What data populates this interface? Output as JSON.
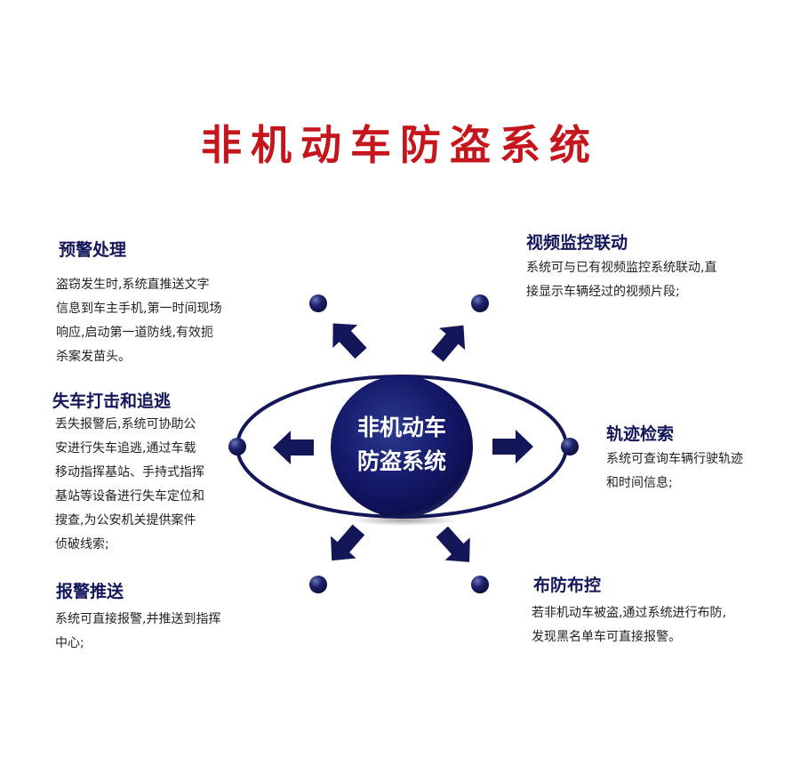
{
  "title": "非机动车防盗系统",
  "center": {
    "line1": "非机动车",
    "line2": "防盗系统"
  },
  "colors": {
    "title": "#c4161c",
    "navy": "#13175a",
    "text": "#222222"
  },
  "nodes": {
    "warning": {
      "heading": "预警处理",
      "lines": [
        "盗窃发生时,系统直推送文字",
        "信息到车主手机,第一时间现场",
        "响应,启动第一道防线,有效扼",
        "杀案发苗头。"
      ]
    },
    "pursuit": {
      "heading": "失车打击和追逃",
      "lines": [
        "丢失报警后,系统可协助公",
        "安进行失车追逃,通过车载",
        "移动指挥基站、手持式指挥",
        "基站等设备进行失车定位和",
        "搜查,为公安机关提供案件",
        "侦破线索;"
      ]
    },
    "alarm": {
      "heading": "报警推送",
      "lines": [
        "系统可直接报警,并推送到指挥",
        "中心;"
      ]
    },
    "video": {
      "heading": "视频监控联动",
      "lines": [
        "系统可与已有视频监控系统联动,直",
        "接显示车辆经过的视频片段;"
      ]
    },
    "track": {
      "heading": "轨迹检索",
      "lines": [
        "系统可查询车辆行驶轨迹",
        "和时间信息;"
      ]
    },
    "deploy": {
      "heading": "布防布控",
      "lines": [
        "若非机动车被盗,通过系统进行布防,",
        "发现黑名单车可直接报警。"
      ]
    }
  }
}
